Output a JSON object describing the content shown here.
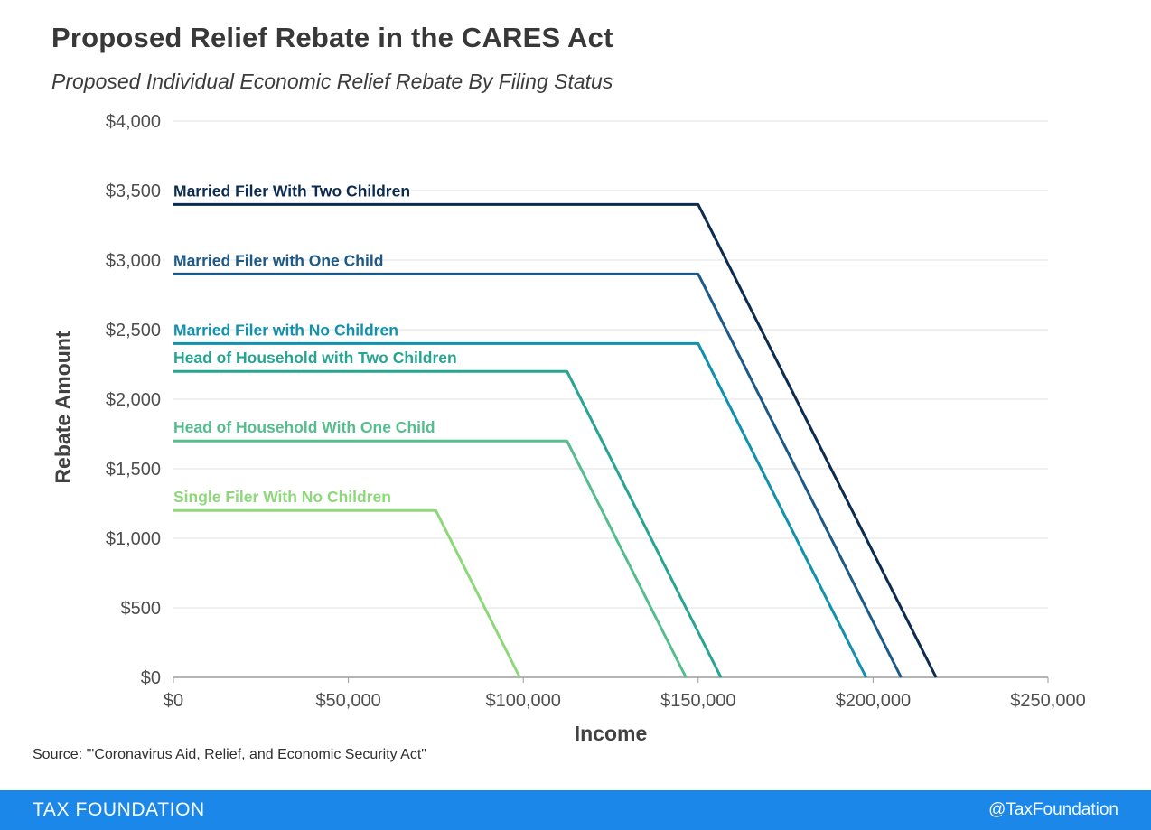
{
  "header": {
    "title": "Proposed Relief Rebate in the CARES Act",
    "subtitle": "Proposed Individual Economic Relief Rebate By Filing Status"
  },
  "chart_data": {
    "type": "line",
    "title": "Proposed Relief Rebate in the CARES Act",
    "subtitle": "Proposed Individual Economic Relief Rebate By Filing Status",
    "xlabel": "Income",
    "ylabel": "Rebate Amount",
    "xlim": [
      0,
      250000
    ],
    "ylim": [
      0,
      4000
    ],
    "x_ticks": [
      0,
      50000,
      100000,
      150000,
      200000,
      250000
    ],
    "x_tick_labels": [
      "$0",
      "$50,000",
      "$100,000",
      "$150,000",
      "$200,000",
      "$250,000"
    ],
    "y_ticks": [
      0,
      500,
      1000,
      1500,
      2000,
      2500,
      3000,
      3500,
      4000
    ],
    "y_tick_labels": [
      "$0",
      "$500",
      "$1,000",
      "$1,500",
      "$2,000",
      "$2,500",
      "$3,000",
      "$3,500",
      "$4,000"
    ],
    "grid": "horizontal",
    "legend_position": "inline-line-labels",
    "series": [
      {
        "name": "Married Filer With Two Children",
        "color": "#0d2c50",
        "points": [
          [
            0,
            3400
          ],
          [
            150000,
            3400
          ],
          [
            218000,
            0
          ]
        ]
      },
      {
        "name": "Married Filer with One Child",
        "color": "#1d5a87",
        "points": [
          [
            0,
            2900
          ],
          [
            150000,
            2900
          ],
          [
            208000,
            0
          ]
        ]
      },
      {
        "name": "Married Filer with No Children",
        "color": "#1191ad",
        "points": [
          [
            0,
            2400
          ],
          [
            150000,
            2400
          ],
          [
            198000,
            0
          ]
        ]
      },
      {
        "name": "Head of Household with Two Children",
        "color": "#27a592",
        "points": [
          [
            0,
            2200
          ],
          [
            112500,
            2200
          ],
          [
            156500,
            0
          ]
        ]
      },
      {
        "name": "Head of Household With One Child",
        "color": "#55bd8e",
        "points": [
          [
            0,
            1700
          ],
          [
            112500,
            1700
          ],
          [
            146500,
            0
          ]
        ]
      },
      {
        "name": "Single Filer With No Children",
        "color": "#8ed87b",
        "points": [
          [
            0,
            1200
          ],
          [
            75000,
            1200
          ],
          [
            99000,
            0
          ]
        ]
      }
    ]
  },
  "source": "Source: \"'Coronavirus Aid, Relief, and Economic Security Act\"",
  "footer": {
    "brand": "TAX FOUNDATION",
    "handle": "@TaxFoundation",
    "bg_color": "#1b87e8"
  }
}
